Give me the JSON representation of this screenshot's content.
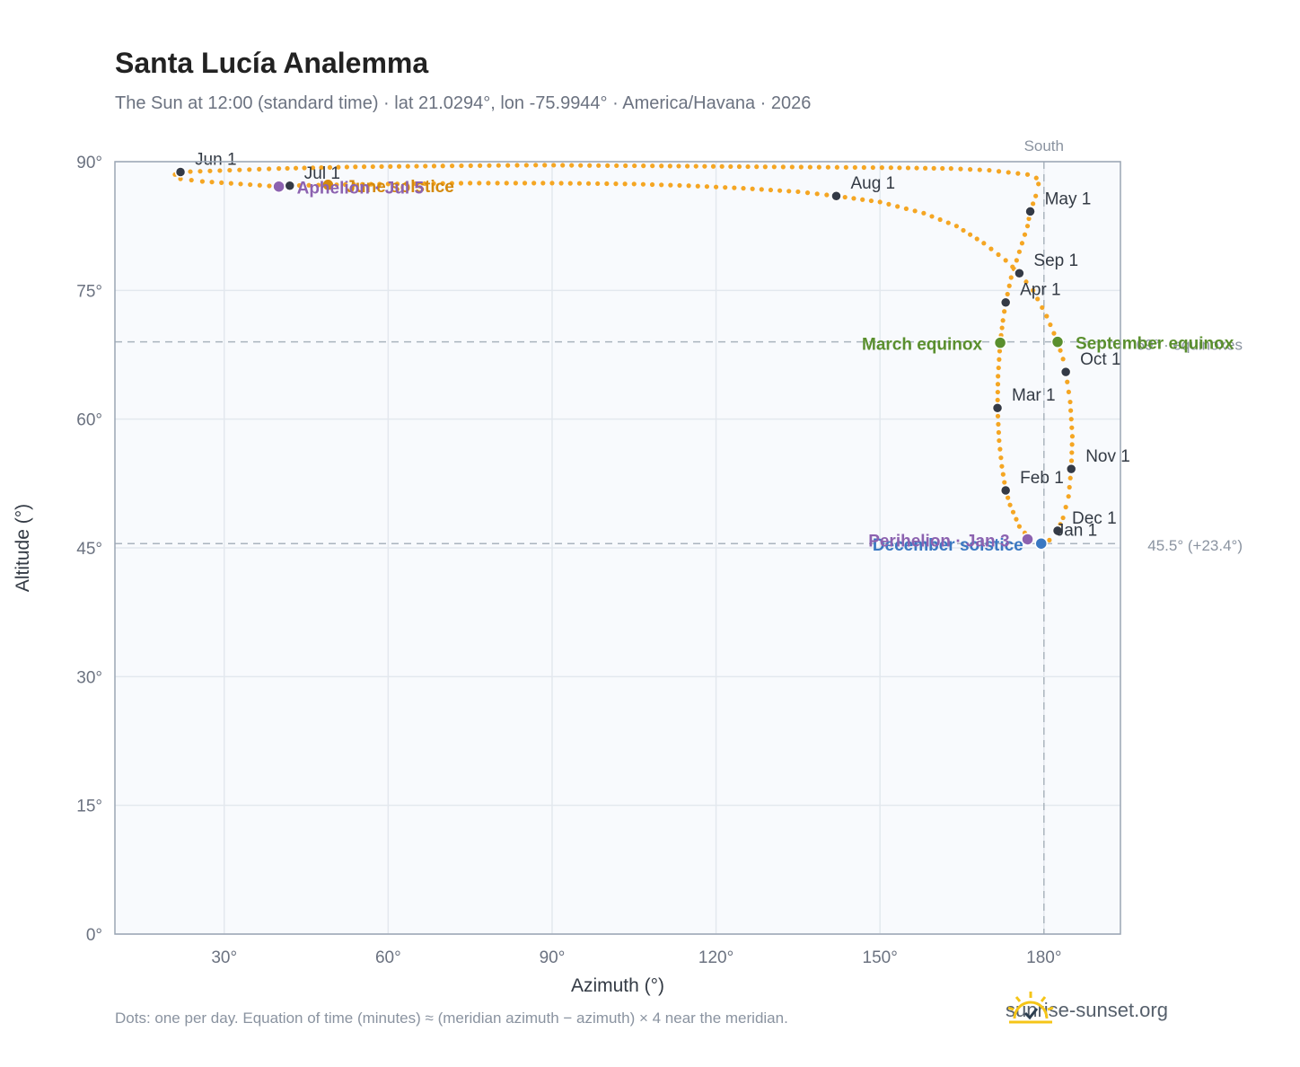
{
  "title": "Santa Lucía Analemma",
  "subtitle": "The Sun at 12:00 (standard time) · lat 21.0294°, lon -75.9944° · America/Havana · 2026",
  "footnote": "Dots: one per day. Equation of time (minutes) ≈ (meridian azimuth − azimuth) × 4 near the meridian.",
  "brand": {
    "name": "sunrise-sunset.org",
    "icon": "sun-logo-icon"
  },
  "colors": {
    "analemma": "#f5a623",
    "month_marker": "#343a46",
    "equinox": "#5a8f2e",
    "solstice_december": "#3a78c2",
    "solstice_june": "#d4890d",
    "apsis": "#8c62b0",
    "reference_line": "#aab4be",
    "plot_background": "#f8fafd"
  },
  "chart_data": {
    "type": "scatter",
    "xlabel": "Azimuth (°)",
    "ylabel": "Altitude (°)",
    "xlim": [
      10,
      194
    ],
    "ylim": [
      0,
      90
    ],
    "x_ticks": [
      30,
      60,
      90,
      120,
      150,
      180
    ],
    "x_tick_labels": [
      "30°",
      "60°",
      "90°",
      "120°",
      "150°",
      "180°"
    ],
    "y_ticks": [
      0,
      15,
      30,
      45,
      60,
      75,
      90
    ],
    "y_tick_labels": [
      "0°",
      "15°",
      "30°",
      "45°",
      "60°",
      "75°",
      "90°"
    ],
    "grid": true,
    "meridian": {
      "azimuth": 180,
      "label": "South"
    },
    "equinox_altitude": 69,
    "equinox_line_label": "69° · equinoxes",
    "solstice_altitude": 45.5,
    "solstice_line_label": "45.5° (+23.4°)",
    "months": [
      {
        "label": "Jan 1",
        "azimuth": 179.5,
        "altitude": 45.6
      },
      {
        "label": "Feb 1",
        "azimuth": 173.0,
        "altitude": 51.7
      },
      {
        "label": "Mar 1",
        "azimuth": 171.5,
        "altitude": 61.3
      },
      {
        "label": "Apr 1",
        "azimuth": 173.0,
        "altitude": 73.6
      },
      {
        "label": "May 1",
        "azimuth": 177.5,
        "altitude": 84.2
      },
      {
        "label": "Jun 1",
        "azimuth": 22.0,
        "altitude": 88.8
      },
      {
        "label": "Jul 1",
        "azimuth": 42.0,
        "altitude": 87.2
      },
      {
        "label": "Aug 1",
        "azimuth": 142.0,
        "altitude": 86.0
      },
      {
        "label": "Sep 1",
        "azimuth": 175.5,
        "altitude": 77.0
      },
      {
        "label": "Oct 1",
        "azimuth": 184.0,
        "altitude": 65.5
      },
      {
        "label": "Nov 1",
        "azimuth": 185.0,
        "altitude": 54.2
      },
      {
        "label": "Dec 1",
        "azimuth": 182.5,
        "altitude": 47.0
      }
    ],
    "events": [
      {
        "label": "March equinox",
        "azimuth": 172.0,
        "altitude": 68.9,
        "kind": "equinox"
      },
      {
        "label": "September equinox",
        "azimuth": 182.5,
        "altitude": 69.0,
        "kind": "equinox"
      },
      {
        "label": "June solstice",
        "azimuth": 49.0,
        "altitude": 87.3,
        "kind": "solstice_june"
      },
      {
        "label": "December solstice",
        "azimuth": 179.5,
        "altitude": 45.5,
        "kind": "solstice_december"
      },
      {
        "label": "Perihelion · Jan 3",
        "azimuth": 177.0,
        "altitude": 46.0,
        "kind": "apsis"
      },
      {
        "label": "Aphelion · Jul 5",
        "azimuth": 40.0,
        "altitude": 87.1,
        "kind": "apsis"
      }
    ],
    "path": [
      [
        179.5,
        45.6
      ],
      [
        177.5,
        46.0
      ],
      [
        175.5,
        47.5
      ],
      [
        173.8,
        50.0
      ],
      [
        173.0,
        51.7
      ],
      [
        172.3,
        54.5
      ],
      [
        171.8,
        57.5
      ],
      [
        171.5,
        61.3
      ],
      [
        171.6,
        65.0
      ],
      [
        172.0,
        68.9
      ],
      [
        172.5,
        71.5
      ],
      [
        173.0,
        73.6
      ],
      [
        174.0,
        76.5
      ],
      [
        175.5,
        79.5
      ],
      [
        177.0,
        82.5
      ],
      [
        177.5,
        84.2
      ],
      [
        178.5,
        86.0
      ],
      [
        179.0,
        87.4
      ],
      [
        178.6,
        88.1
      ],
      [
        177.0,
        88.5
      ],
      [
        170.0,
        89.0
      ],
      [
        163.0,
        89.2
      ],
      [
        152.0,
        89.3
      ],
      [
        129.0,
        89.4
      ],
      [
        110.0,
        89.5
      ],
      [
        87.0,
        89.6
      ],
      [
        70.0,
        89.5
      ],
      [
        54.0,
        89.4
      ],
      [
        40.0,
        89.2
      ],
      [
        31.0,
        89.0
      ],
      [
        22.0,
        88.8
      ],
      [
        21.0,
        88.5
      ],
      [
        22.0,
        88.0
      ],
      [
        26.0,
        87.7
      ],
      [
        33.0,
        87.4
      ],
      [
        40.0,
        87.1
      ],
      [
        42.0,
        87.2
      ],
      [
        49.0,
        87.3
      ],
      [
        60.0,
        87.4
      ],
      [
        75.0,
        87.5
      ],
      [
        90.0,
        87.5
      ],
      [
        105.0,
        87.4
      ],
      [
        115.0,
        87.2
      ],
      [
        125.0,
        86.9
      ],
      [
        135.0,
        86.5
      ],
      [
        142.0,
        86.0
      ],
      [
        150.0,
        85.3
      ],
      [
        158.0,
        84.0
      ],
      [
        164.0,
        82.5
      ],
      [
        169.0,
        80.5
      ],
      [
        173.0,
        78.5
      ],
      [
        175.5,
        77.0
      ],
      [
        178.0,
        75.0
      ],
      [
        180.5,
        72.0
      ],
      [
        182.5,
        69.0
      ],
      [
        183.5,
        67.0
      ],
      [
        184.0,
        65.5
      ],
      [
        184.8,
        62.0
      ],
      [
        185.2,
        58.0
      ],
      [
        185.0,
        54.2
      ],
      [
        184.5,
        51.0
      ],
      [
        183.5,
        48.5
      ],
      [
        182.5,
        47.0
      ],
      [
        181.0,
        45.9
      ],
      [
        179.5,
        45.6
      ]
    ]
  }
}
